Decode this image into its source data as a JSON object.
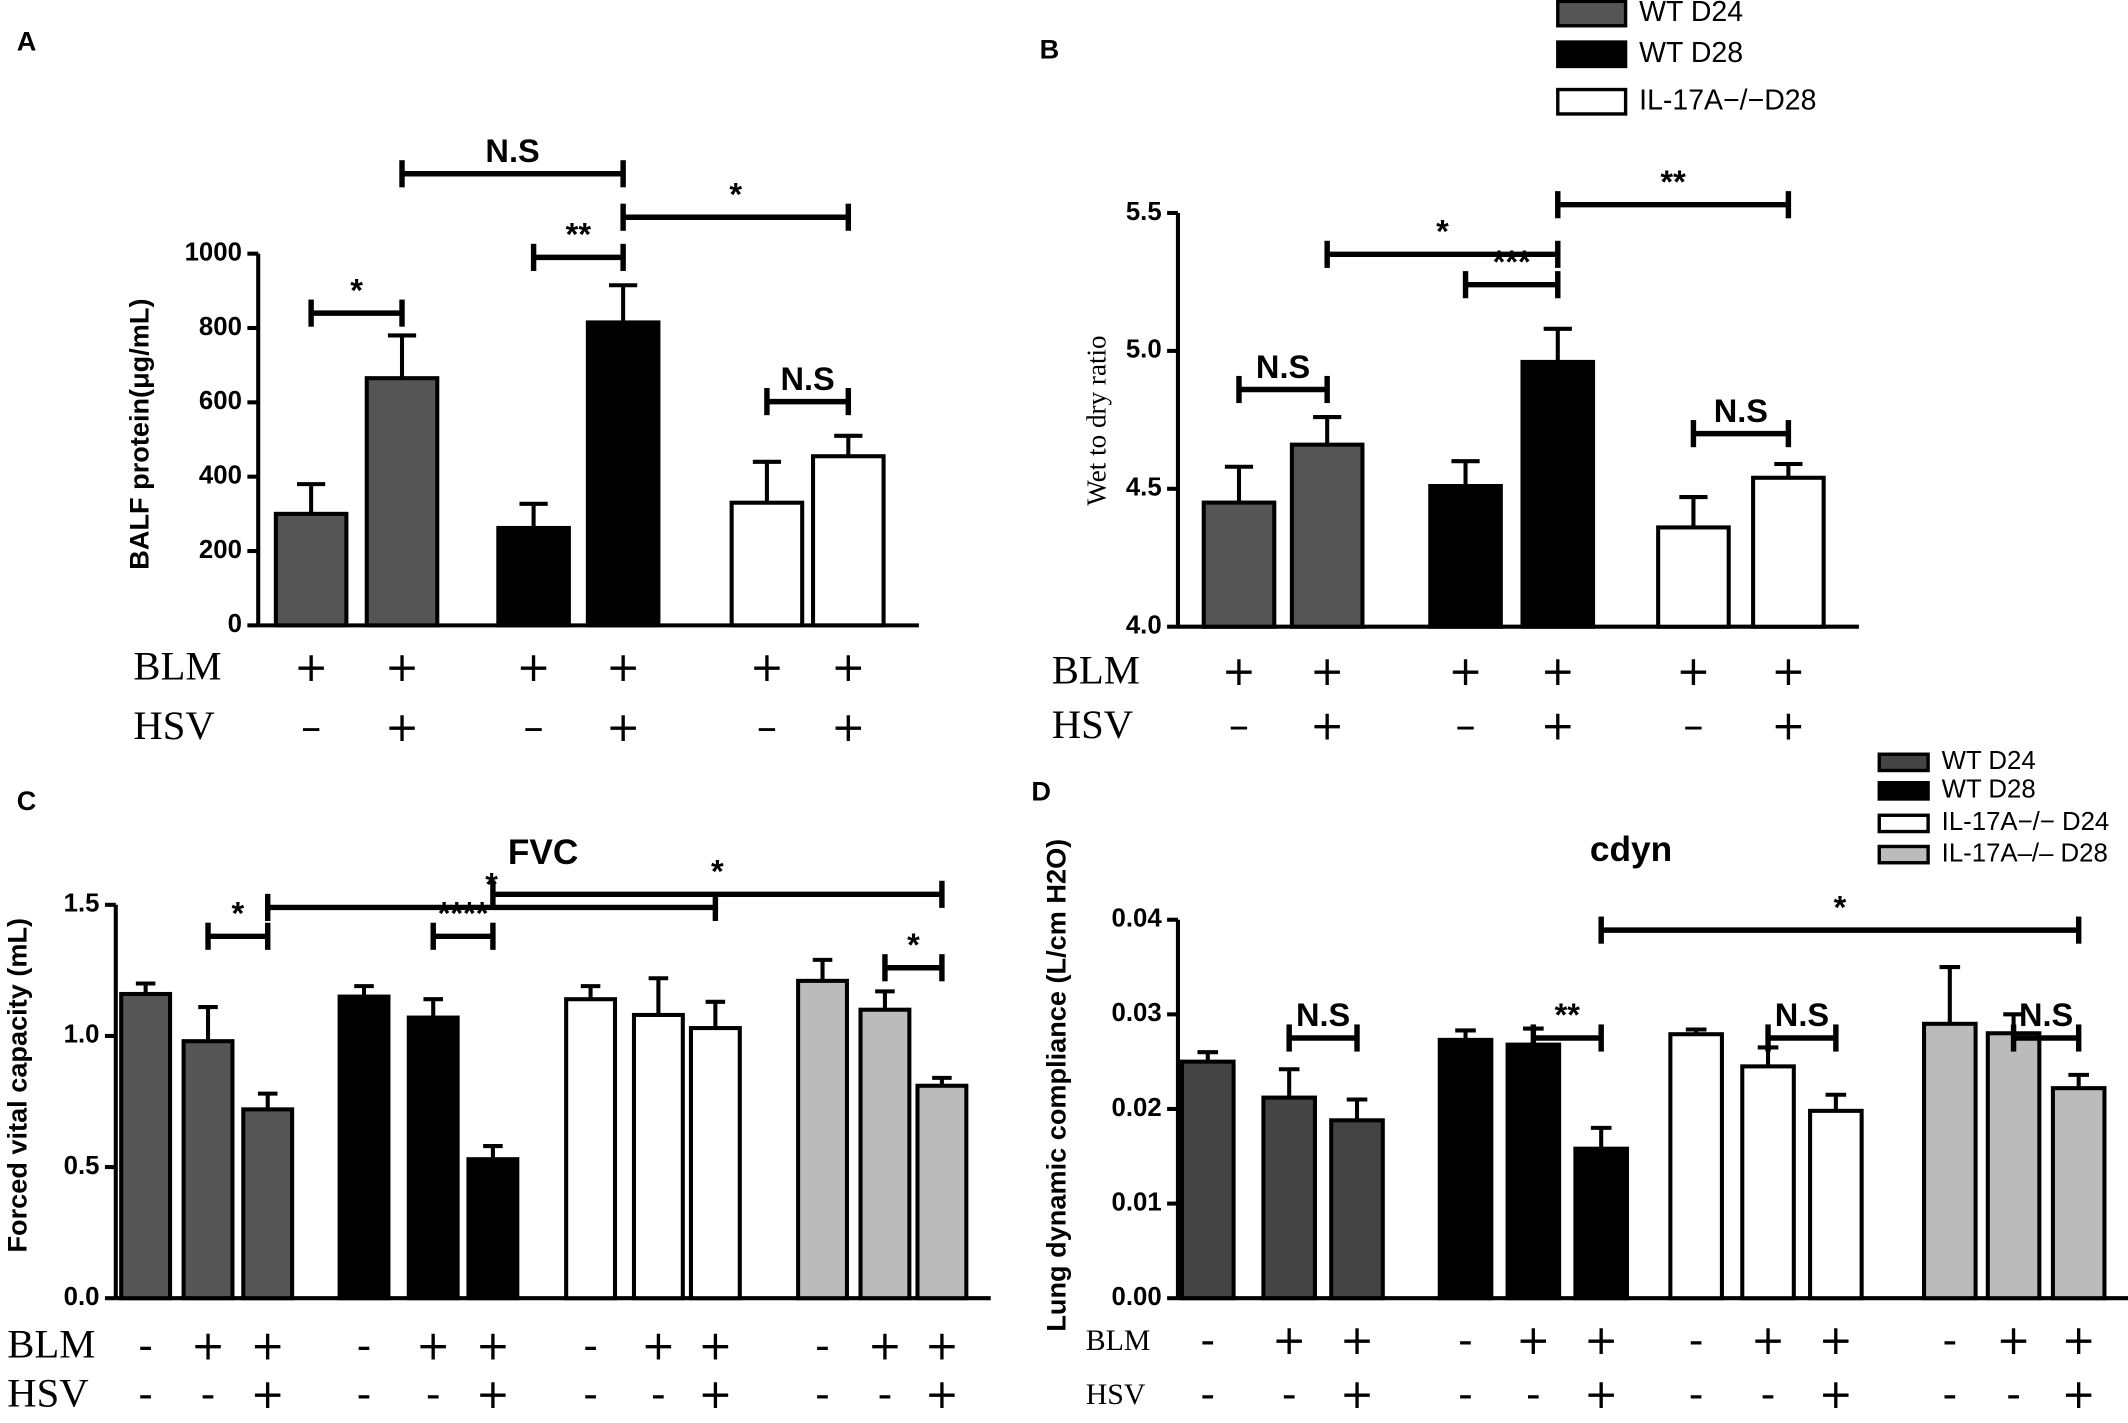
{
  "chart_data": [
    {
      "type": "bar",
      "panel": "A",
      "ylabel": "BALF protein(μg/mL)",
      "ylim": [
        0,
        1000
      ],
      "yticks": [
        0,
        200,
        400,
        600,
        800,
        1000
      ],
      "series": [
        {
          "color": "#555555",
          "values": [
            300,
            665
          ],
          "errors": [
            80,
            115
          ]
        },
        {
          "color": "#000000",
          "values": [
            262,
            815
          ],
          "errors": [
            65,
            100
          ]
        },
        {
          "color": "#ffffff",
          "values": [
            330,
            455
          ],
          "errors": [
            110,
            55
          ]
        }
      ],
      "rows": [
        {
          "label": "BLM",
          "signs": [
            "+",
            "+",
            "+",
            "+",
            "+",
            "+"
          ]
        },
        {
          "label": "HSV",
          "signs": [
            "–",
            "+",
            "–",
            "+",
            "–",
            "+"
          ]
        }
      ],
      "annotations": [
        "*",
        "N.S",
        "**",
        "*",
        "N.S"
      ]
    },
    {
      "type": "bar",
      "panel": "B",
      "ylabel": "Wet to dry ratio",
      "ylim": [
        4.0,
        5.5
      ],
      "yticks": [
        {
          "value": 4.0,
          "label": "4.0"
        },
        4.5,
        {
          "value": 5.0,
          "label": "5.0"
        },
        5.5
      ],
      "series": [
        {
          "name": "WT D24",
          "color": "#555555",
          "values": [
            4.45,
            4.66
          ],
          "errors": [
            0.13,
            0.1
          ]
        },
        {
          "name": "WT D28",
          "color": "#000000",
          "values": [
            4.51,
            4.96
          ],
          "errors": [
            0.09,
            0.12
          ]
        },
        {
          "name": "IL-17A−/−D28",
          "color": "#ffffff",
          "values": [
            4.36,
            4.54
          ],
          "errors": [
            0.11,
            0.05
          ]
        }
      ],
      "legend": true,
      "rows": [
        {
          "label": "BLM",
          "signs": [
            "+",
            "+",
            "+",
            "+",
            "+",
            "+"
          ]
        },
        {
          "label": "HSV",
          "signs": [
            "–",
            "+",
            "–",
            "+",
            "–",
            "+"
          ]
        }
      ],
      "annotations": [
        "N.S",
        "*",
        "***",
        "**",
        "N.S"
      ]
    },
    {
      "type": "bar",
      "panel": "C",
      "title": "FVC",
      "ylabel": "Forced vital capacity (mL)",
      "ylim": [
        0,
        1.5
      ],
      "yticks": [
        {
          "value": 0,
          "label": "0.0"
        },
        0.5,
        {
          "value": 1,
          "label": "1.0"
        },
        1.5
      ],
      "series": [
        {
          "color": "#555555",
          "values": [
            1.16,
            0.98,
            0.72
          ],
          "errors": [
            0.04,
            0.13,
            0.06
          ]
        },
        {
          "color": "#000000",
          "values": [
            1.15,
            1.07,
            0.53
          ],
          "errors": [
            0.04,
            0.07,
            0.05
          ]
        },
        {
          "color": "#ffffff",
          "values": [
            1.14,
            1.08,
            1.03
          ],
          "errors": [
            0.05,
            0.14,
            0.1
          ]
        },
        {
          "color": "#bbbbbb",
          "values": [
            1.21,
            1.1,
            0.81
          ],
          "errors": [
            0.08,
            0.07,
            0.03
          ]
        }
      ],
      "rows": [
        {
          "label": "BLM",
          "signs": [
            "-",
            "+",
            "+",
            "-",
            "+",
            "+",
            "-",
            "+",
            "+",
            "-",
            "+",
            "+"
          ]
        },
        {
          "label": "HSV",
          "signs": [
            "-",
            "-",
            "+",
            "-",
            "-",
            "+",
            "-",
            "-",
            "+",
            "-",
            "-",
            "+"
          ]
        }
      ],
      "annotations": [
        "*",
        "*",
        "****",
        "*",
        "*"
      ]
    },
    {
      "type": "bar",
      "panel": "D",
      "title": "cdyn",
      "ylabel": "Lung dynamic compliance (L/cm H2O)",
      "ylim": [
        0,
        0.04
      ],
      "yticks": [
        {
          "value": 0,
          "label": "0.00"
        },
        0.01,
        {
          "value": 0.02,
          "label": "0.02"
        },
        0.03,
        0.04
      ],
      "series": [
        {
          "name": "WT D24",
          "color": "#444444",
          "values": [
            0.025,
            0.0212,
            0.0188
          ],
          "errors": [
            0.001,
            0.003,
            0.0022
          ]
        },
        {
          "name": "WT D28",
          "color": "#000000",
          "values": [
            0.0273,
            0.0268,
            0.0158
          ],
          "errors": [
            0.001,
            0.0017,
            0.0022
          ]
        },
        {
          "name": "IL-17A−/− D24",
          "color": "#ffffff",
          "values": [
            0.0279,
            0.0245,
            0.0198
          ],
          "errors": [
            0.0005,
            0.002,
            0.0017
          ]
        },
        {
          "name": "IL-17A–/– D28",
          "color": "#bbbbbb",
          "values": [
            0.029,
            0.028,
            0.0222
          ],
          "errors": [
            0.006,
            0.002,
            0.0014
          ]
        }
      ],
      "legend": true,
      "rows": [
        {
          "label": "BLM",
          "signs": [
            "-",
            "+",
            "+",
            "-",
            "+",
            "+",
            "-",
            "+",
            "+",
            "-",
            "+",
            "+"
          ]
        },
        {
          "label": "HSV",
          "signs": [
            "-",
            "-",
            "+",
            "-",
            "-",
            "+",
            "-",
            "-",
            "+",
            "-",
            "-",
            "+"
          ]
        }
      ],
      "annotations": [
        "N.S",
        "**",
        "N.S",
        "N.S",
        "*"
      ]
    }
  ]
}
